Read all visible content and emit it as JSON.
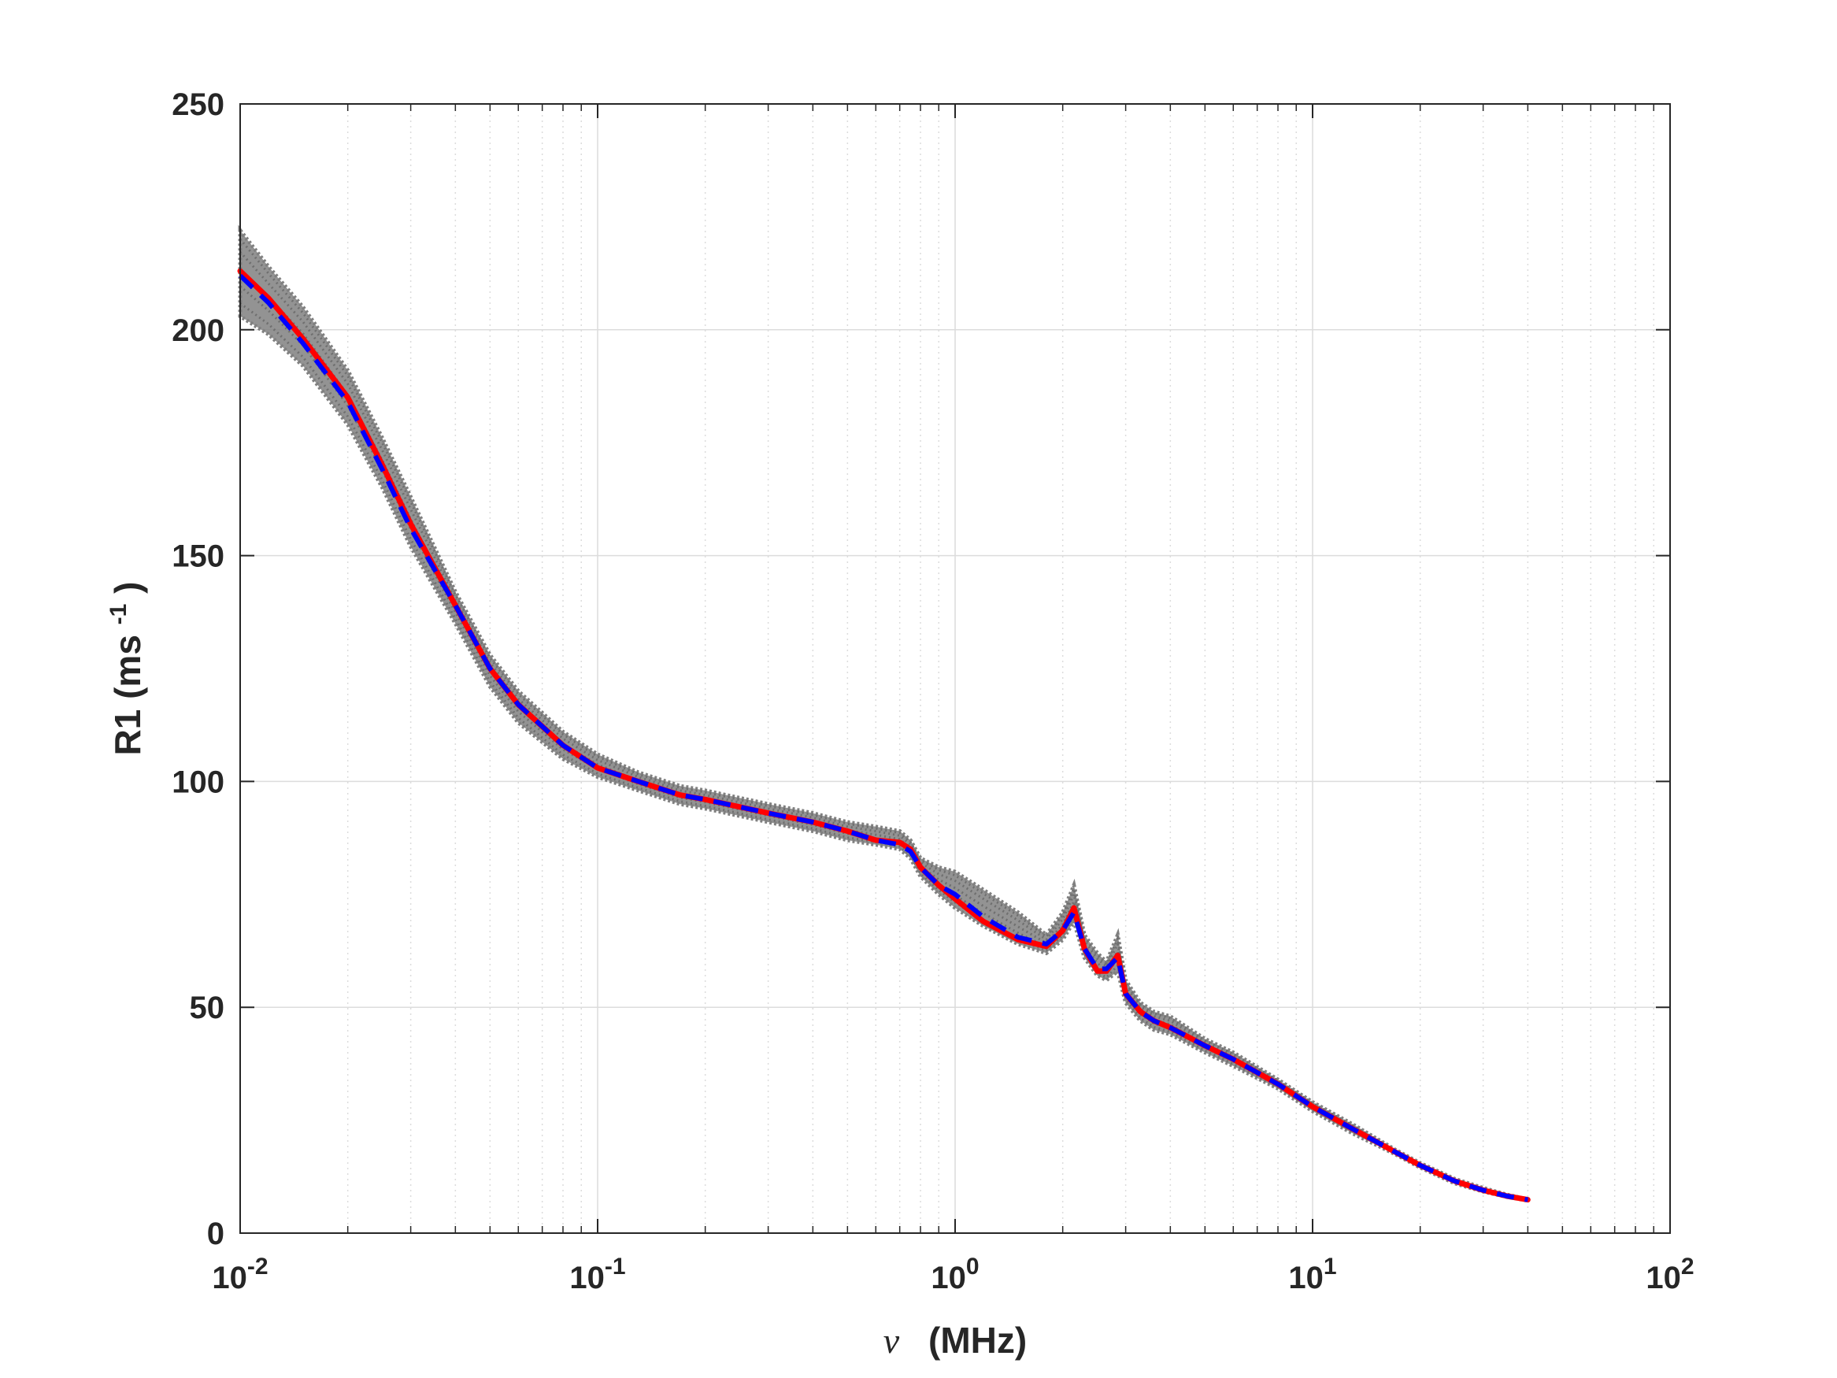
{
  "chart_data": {
    "type": "line",
    "title": "",
    "xlabel_symbol": "ν",
    "xlabel_unit": "(MHz)",
    "ylabel_main": "R1 (ms",
    "ylabel_sup": "-1",
    "ylabel_close": ")",
    "xscale": "log",
    "xlim": [
      0.01,
      100
    ],
    "ylim": [
      0,
      250
    ],
    "xtick_base": "10",
    "xtick_exponents": [
      "-2",
      "-1",
      "0",
      "1",
      "2"
    ],
    "ytick_labels": [
      "0",
      "50",
      "100",
      "150",
      "200",
      "250"
    ],
    "grid": true,
    "minor_grid": true,
    "colors": {
      "envelope": "#808080",
      "fit": "#ff0000",
      "mean": "#0000ff",
      "grid": "#dcdcdc",
      "axis": "#262626"
    },
    "series": [
      {
        "style": "gray dotted ensemble (envelope)",
        "x": [
          0.01,
          0.012,
          0.015,
          0.02,
          0.025,
          0.03,
          0.04,
          0.05,
          0.06,
          0.08,
          0.1,
          0.13,
          0.17,
          0.2,
          0.3,
          0.4,
          0.5,
          0.6,
          0.7,
          0.75,
          0.8,
          0.9,
          1.0,
          1.2,
          1.5,
          1.8,
          2.0,
          2.15,
          2.3,
          2.5,
          2.65,
          2.85,
          3.0,
          3.3,
          3.6,
          4.0,
          5.0,
          6.0,
          8.0,
          10,
          13,
          17,
          20,
          25,
          30,
          35,
          40
        ],
        "y_upper": [
          222,
          214,
          205,
          191,
          176,
          163,
          142,
          128,
          120,
          111,
          106,
          102,
          99,
          98,
          95,
          93,
          91,
          90,
          89,
          87,
          83,
          81,
          80,
          76,
          71,
          66,
          71,
          77,
          66,
          62,
          60,
          66,
          56,
          51,
          49,
          48,
          43,
          40,
          34,
          29,
          24,
          18.5,
          15.5,
          12,
          10,
          8.5,
          7.5
        ],
        "y_lower": [
          203,
          199,
          192,
          179,
          165,
          152,
          135,
          121,
          113,
          105,
          101,
          98,
          95,
          94,
          91,
          89,
          87,
          86,
          85,
          83,
          79,
          75,
          72,
          68,
          64,
          62,
          65,
          69,
          61,
          57,
          56,
          58,
          51,
          47,
          45,
          44,
          40,
          37,
          32,
          27,
          22,
          17.5,
          14.5,
          11,
          9.2,
          8,
          7.2
        ]
      },
      {
        "style": "red solid",
        "x": [
          0.01,
          0.012,
          0.015,
          0.02,
          0.025,
          0.03,
          0.04,
          0.05,
          0.06,
          0.08,
          0.1,
          0.13,
          0.17,
          0.2,
          0.3,
          0.4,
          0.5,
          0.6,
          0.7,
          0.75,
          0.8,
          0.9,
          1.0,
          1.2,
          1.5,
          1.8,
          2.0,
          2.15,
          2.3,
          2.5,
          2.65,
          2.85,
          3.0,
          3.3,
          3.6,
          4.0,
          5.0,
          6.0,
          8.0,
          10,
          13,
          17,
          20,
          25,
          30,
          35,
          40
        ],
        "y": [
          213,
          207,
          198,
          185,
          170,
          157,
          139,
          125,
          117,
          108,
          103,
          100,
          97,
          96,
          93,
          91,
          89,
          87,
          86.5,
          85,
          81,
          77,
          74,
          69,
          65,
          63.5,
          67,
          72,
          63,
          58,
          58,
          61.5,
          53,
          49,
          47,
          45.5,
          41.5,
          38.5,
          33,
          28,
          23,
          18,
          15,
          11.5,
          9.5,
          8.2,
          7.4
        ]
      },
      {
        "style": "blue dashed",
        "x": [
          0.01,
          0.012,
          0.015,
          0.02,
          0.025,
          0.03,
          0.04,
          0.05,
          0.06,
          0.08,
          0.1,
          0.13,
          0.17,
          0.2,
          0.3,
          0.4,
          0.5,
          0.6,
          0.7,
          0.75,
          0.8,
          0.9,
          1.0,
          1.2,
          1.5,
          1.8,
          2.0,
          2.15,
          2.3,
          2.5,
          2.65,
          2.85,
          3.0,
          3.3,
          3.6,
          4.0,
          5.0,
          6.0,
          8.0,
          10,
          13,
          17,
          20,
          25,
          30,
          35,
          40
        ],
        "y": [
          212,
          206,
          197,
          184,
          169,
          156,
          139,
          125,
          117,
          108,
          103,
          100,
          97,
          96,
          93,
          91,
          89,
          87,
          86,
          84.5,
          81,
          77,
          75,
          70,
          65.5,
          64,
          67,
          71,
          63,
          58.5,
          58.5,
          61,
          53,
          49,
          47,
          45.5,
          41.5,
          38.5,
          33,
          28,
          23,
          18,
          15,
          11.5,
          9.5,
          8.2,
          7.4
        ]
      }
    ]
  }
}
